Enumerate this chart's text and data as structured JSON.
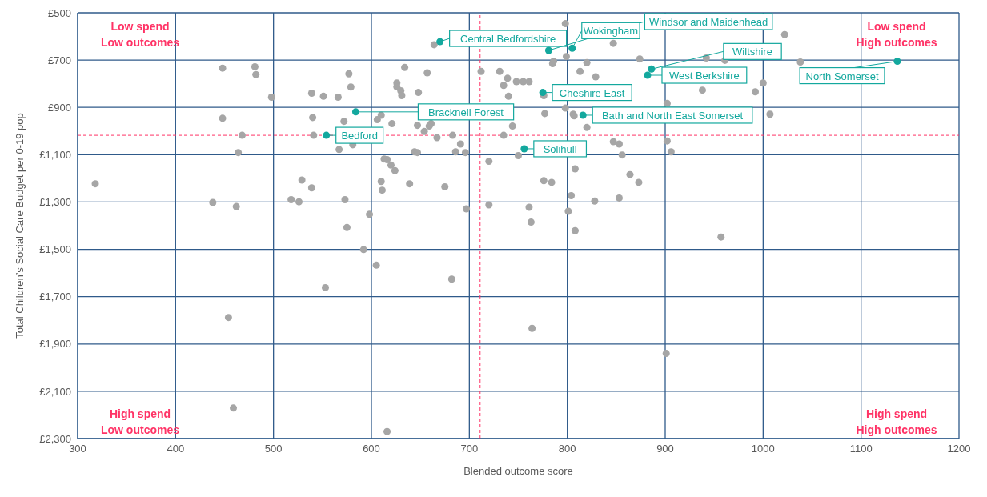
{
  "chart_data": {
    "type": "scatter",
    "xlabel": "Blended outcome score",
    "ylabel": "Total Children’s Social Care Budget per 0-19 pop",
    "xlim": [
      300,
      1200
    ],
    "xticks": [
      300,
      400,
      500,
      600,
      700,
      800,
      900,
      1000,
      1100,
      1200
    ],
    "ylim": [
      2300,
      500
    ],
    "yticks": [
      {
        "value": 500,
        "label": "£500"
      },
      {
        "value": 700,
        "label": "£700"
      },
      {
        "value": 900,
        "label": "£900"
      },
      {
        "value": 1100,
        "label": "£1,100"
      },
      {
        "value": 1300,
        "label": "£1,300"
      },
      {
        "value": 1500,
        "label": "£1,500"
      },
      {
        "value": 1700,
        "label": "£1,700"
      },
      {
        "value": 1900,
        "label": "£1,900"
      },
      {
        "value": 2100,
        "label": "£2,100"
      },
      {
        "value": 2300,
        "label": "£2,300"
      }
    ],
    "grid": true,
    "marker": "circle",
    "series": [
      {
        "color": "#a6a6a6",
        "x": [
          318,
          448,
          481,
          482,
          498,
          539,
          551,
          566,
          577,
          579,
          448,
          540,
          572,
          606,
          610,
          468,
          541,
          464,
          567,
          581,
          613,
          529,
          539,
          610,
          611,
          438,
          462,
          518,
          526,
          573,
          598,
          575,
          592,
          605,
          553,
          454,
          459,
          616,
          682,
          764,
          808,
          957,
          901,
          798,
          664,
          847,
          799,
          785,
          786,
          820,
          874,
          813,
          829,
          634,
          657,
          712,
          731,
          739,
          735,
          748,
          755,
          761,
          626,
          626,
          630,
          631,
          648,
          740,
          776,
          902,
          798,
          777,
          806,
          807,
          820,
          744,
          735,
          667,
          683,
          691,
          661,
          659,
          654,
          647,
          621,
          644,
          647,
          686,
          696,
          750,
          720,
          847,
          853,
          856,
          902,
          906,
          616,
          620,
          624,
          639,
          675,
          808,
          776,
          784,
          804,
          828,
          853,
          864,
          873,
          697,
          720,
          761,
          763,
          801,
          1022,
          942,
          961,
          1038,
          938,
          992,
          1000,
          1007
        ],
        "values": [
          1223,
          734,
          728,
          761,
          857,
          840,
          853,
          857,
          758,
          814,
          946,
          943,
          959,
          952,
          933,
          1018,
          1018,
          1091,
          1078,
          1058,
          1118,
          1207,
          1240,
          1213,
          1250,
          1302,
          1319,
          1290,
          1299,
          1290,
          1352,
          1408,
          1501,
          1567,
          1662,
          1788,
          2171,
          2270,
          1626,
          1834,
          1421,
          1448,
          1940,
          546,
          635,
          629,
          685,
          715,
          705,
          711,
          695,
          748,
          771,
          731,
          754,
          748,
          748,
          777,
          807,
          791,
          791,
          791,
          797,
          813,
          830,
          850,
          837,
          853,
          850,
          883,
          903,
          926,
          929,
          936,
          985,
          979,
          1018,
          1028,
          1018,
          1055,
          969,
          979,
          1002,
          976,
          969,
          1088,
          1091,
          1088,
          1091,
          1104,
          1128,
          1045,
          1055,
          1101,
          1042,
          1088,
          1121,
          1144,
          1167,
          1223,
          1236,
          1160,
          1210,
          1217,
          1273,
          1296,
          1283,
          1184,
          1217,
          1329,
          1312,
          1322,
          1385,
          1339,
          592,
          691,
          701,
          708,
          827,
          834,
          797,
          929
        ]
      },
      {
        "color": "#13a89e",
        "x": [
          670,
          781,
          805,
          886,
          882,
          1137,
          775,
          584,
          816,
          554,
          756
        ],
        "values": [
          622,
          659,
          650,
          738,
          764,
          705,
          837,
          919,
          933,
          1018,
          1075
        ]
      }
    ],
    "ref_lines": [
      {
        "axis": "x",
        "value": 711,
        "color": "#ff3366",
        "line_style": "dashed"
      },
      {
        "axis": "y",
        "value": 1018,
        "color": "#ff3366",
        "line_style": "dashed"
      }
    ],
    "annotations": [
      "Low spend\nLow outcomes",
      "Low spend\nHigh outcomes",
      "High spend\nLow outcomes",
      "High spend\nHigh outcomes",
      {
        "text": "Central Bedfordshire",
        "x": 670,
        "y": 622
      },
      {
        "text": "Windsor and Maidenhead",
        "x": 781,
        "y": 659
      },
      {
        "text": "Wokingham",
        "x": 805,
        "y": 650
      },
      {
        "text": "Wiltshire",
        "x": 886,
        "y": 738
      },
      {
        "text": "West Berkshire",
        "x": 882,
        "y": 764
      },
      {
        "text": "North Somerset",
        "x": 1137,
        "y": 705
      },
      {
        "text": "Cheshire East",
        "x": 775,
        "y": 837
      },
      {
        "text": "Bracknell Forest",
        "x": 584,
        "y": 919
      },
      {
        "text": "Bath and North East Somerset",
        "x": 816,
        "y": 933
      },
      {
        "text": "Bedford",
        "x": 554,
        "y": 1018
      },
      {
        "text": "Solihull",
        "x": 756,
        "y": 1075
      }
    ]
  }
}
